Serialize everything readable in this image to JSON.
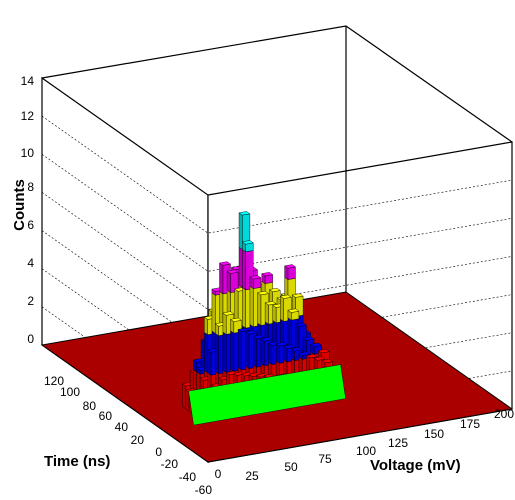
{
  "chart_data": {
    "type": "lego-3d-histogram",
    "title": "",
    "zlabel": "Counts",
    "xlabel": "Voltage (mV)",
    "ylabel": "Time (ns)",
    "zlim": [
      0,
      14
    ],
    "z_ticks": [
      "0",
      "2",
      "4",
      "6",
      "8",
      "10",
      "12",
      "14"
    ],
    "x_ticks": [
      "0",
      "25",
      "50",
      "75",
      "100",
      "125",
      "150",
      "175",
      "200"
    ],
    "y_ticks": [
      "-60",
      "-40",
      "-20",
      "0",
      "20",
      "40",
      "60",
      "80",
      "100",
      "120"
    ],
    "xlim": [
      0,
      200
    ],
    "ylim": [
      -60,
      140
    ],
    "grid": true,
    "color_levels": [
      {
        "from": 0,
        "to": 2,
        "color": "#ff0000"
      },
      {
        "from": 2,
        "to": 4,
        "color": "#0000ff"
      },
      {
        "from": 4,
        "to": 6,
        "color": "#ffff00"
      },
      {
        "from": 6,
        "to": 8,
        "color": "#ff00ff"
      },
      {
        "from": 8,
        "to": 14,
        "color": "#00ffff"
      }
    ],
    "floor_color": "#aa0000",
    "green_band_color": "#00ff00",
    "bins": [
      {
        "t": 18,
        "v": [
          1.2,
          1.8,
          2.2,
          2.6,
          3.0,
          3.3,
          3.6,
          3.8,
          4.0,
          4.2,
          4.5,
          4.6,
          4.8,
          5.0
        ]
      },
      {
        "t": 14,
        "v": [
          1.0,
          2.5,
          3.5,
          5.0,
          6.0,
          6.5,
          7.0,
          9.8,
          6.8,
          6.0,
          6.4,
          5.5,
          5.0,
          6.6,
          5.0,
          3.0,
          2.0
        ]
      },
      {
        "t": 10,
        "v": [
          0.8,
          2.2,
          4.8,
          6.2,
          7.5,
          7.0,
          6.0,
          8.4,
          6.5,
          5.6,
          5.0,
          4.8,
          5.2,
          4.4,
          3.6,
          2.8,
          2.4,
          2.0
        ]
      },
      {
        "t": 6,
        "v": [
          1.0,
          1.8,
          3.2,
          4.5,
          5.0,
          4.6,
          4.0,
          3.8,
          3.5,
          3.3,
          3.0,
          2.9,
          2.7,
          2.5,
          2.2,
          2.0,
          1.8,
          1.6
        ]
      },
      {
        "t": 2,
        "v": [
          0.6,
          1.0,
          1.5,
          1.8,
          2.0,
          1.9,
          1.8,
          1.7,
          1.6,
          1.5,
          1.4,
          1.4,
          1.3,
          1.2,
          1.0,
          0.9,
          0.8,
          0.7
        ]
      },
      {
        "t": -2,
        "v": [
          0.4,
          0.6,
          0.8,
          0.9,
          1.0,
          0.9,
          0.8,
          0.8,
          0.7,
          0.6,
          0.6,
          0.5,
          0.5,
          0.4,
          0.4,
          0.3,
          0.3,
          0.2
        ]
      }
    ]
  }
}
